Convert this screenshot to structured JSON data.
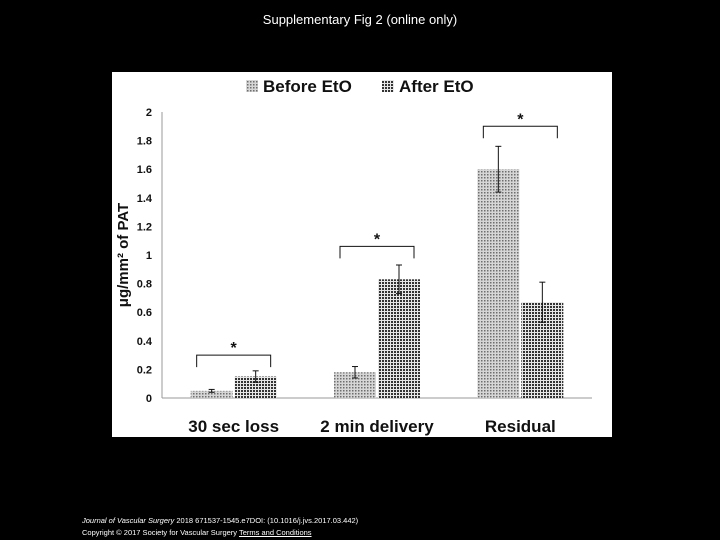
{
  "page": {
    "title": "Supplementary Fig 2 (online only)",
    "citation_journal": "Journal of Vascular Surgery",
    "citation_details": "2018 671537-1545.e7DOI: (10.1016/j.jvs.2017.03.442)",
    "copyright": "Copyright © 2017 Society for Vascular Surgery",
    "terms_link": "Terms and Conditions"
  },
  "chart_data": {
    "type": "bar",
    "title": "",
    "xlabel": "",
    "ylabel": "μg/mm² of PAT",
    "ylim": [
      0,
      2
    ],
    "yticks": [
      "0",
      "0.2",
      "0.4",
      "0.6",
      "0.8",
      "1",
      "1.2",
      "1.4",
      "1.6",
      "1.8",
      "2"
    ],
    "grid": false,
    "legend_position": "top",
    "categories": [
      "30 sec loss",
      "2 min delivery",
      "Residual"
    ],
    "series": [
      {
        "name": "Before EtO",
        "values": [
          0.05,
          0.18,
          1.6
        ],
        "error": [
          0.01,
          0.04,
          0.16
        ],
        "color": "#b5b5b5"
      },
      {
        "name": "After EtO",
        "values": [
          0.15,
          0.83,
          0.67
        ],
        "error": [
          0.04,
          0.1,
          0.14
        ],
        "color": "#8c8c8c"
      }
    ],
    "annotations": [
      {
        "category": "30 sec loss",
        "text": "*",
        "bracket_y": 0.3
      },
      {
        "category": "2 min delivery",
        "text": "*",
        "bracket_y": 1.06
      },
      {
        "category": "Residual",
        "text": "*",
        "bracket_y": 1.9
      }
    ]
  }
}
